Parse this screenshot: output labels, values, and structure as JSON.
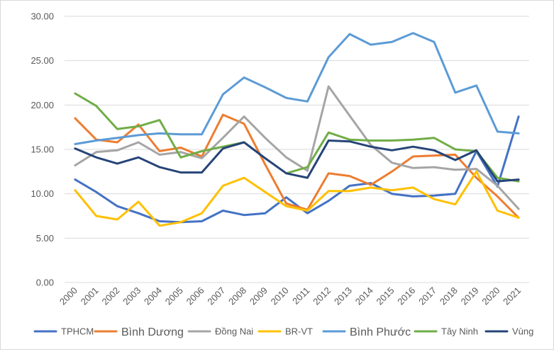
{
  "chart_data": {
    "type": "line",
    "x": [
      "2000",
      "2001",
      "2002",
      "2003",
      "2004",
      "2005",
      "2006",
      "2007",
      "2008",
      "2009",
      "2010",
      "2011",
      "2012",
      "2013",
      "2014",
      "2015",
      "2016",
      "2017",
      "2018",
      "2019",
      "2020",
      "2021"
    ],
    "ylim": [
      0,
      30
    ],
    "yticks": [
      "0.00",
      "5.00",
      "10.00",
      "15.00",
      "20.00",
      "25.00",
      "30.00"
    ],
    "grid": true,
    "legend_position": "bottom",
    "series": [
      {
        "name": "TPHCM",
        "color": "#4472c4",
        "values": [
          11.6,
          10.2,
          8.6,
          7.8,
          6.9,
          6.8,
          6.9,
          8.1,
          7.6,
          7.8,
          9.6,
          7.8,
          9.2,
          10.9,
          11.2,
          10.0,
          9.7,
          9.8,
          10.0,
          14.8,
          10.8,
          18.7
        ]
      },
      {
        "name": "Bình Dương",
        "color": "#ed7d31",
        "values": [
          18.5,
          16.1,
          15.8,
          17.8,
          14.8,
          15.2,
          14.2,
          18.9,
          17.9,
          13.3,
          8.9,
          8.2,
          12.3,
          12.0,
          11.0,
          12.5,
          14.2,
          14.3,
          14.4,
          11.8,
          9.7,
          7.3
        ]
      },
      {
        "name": "Đồng Nai",
        "color": "#a5a5a5",
        "values": [
          13.2,
          14.7,
          14.9,
          15.8,
          14.4,
          14.7,
          14.0,
          16.3,
          18.7,
          16.3,
          14.1,
          12.6,
          22.1,
          18.8,
          15.5,
          13.5,
          12.9,
          13.0,
          12.7,
          12.8,
          10.9,
          8.3
        ]
      },
      {
        "name": "BR-VT",
        "color": "#ffc000",
        "values": [
          10.4,
          7.5,
          7.1,
          9.1,
          6.4,
          6.8,
          7.8,
          10.9,
          11.8,
          10.2,
          8.6,
          8.1,
          10.3,
          10.3,
          10.7,
          10.4,
          10.7,
          9.4,
          8.8,
          12.5,
          8.1,
          7.3
        ]
      },
      {
        "name": "Bình Phước",
        "color": "#5b9bd5",
        "values": [
          15.6,
          16.0,
          16.3,
          16.6,
          16.8,
          16.7,
          16.7,
          21.2,
          23.1,
          22.0,
          20.8,
          20.4,
          25.4,
          28.0,
          26.8,
          27.1,
          28.1,
          27.1,
          21.4,
          22.2,
          17.0,
          16.8
        ]
      },
      {
        "name": "Tây Ninh",
        "color": "#70ad47",
        "values": [
          21.3,
          19.9,
          17.3,
          17.6,
          18.3,
          14.1,
          14.8,
          15.3,
          15.8,
          null,
          12.3,
          13.0,
          16.9,
          16.1,
          16.0,
          16.0,
          16.1,
          16.3,
          15.0,
          14.8,
          11.8,
          11.4
        ]
      },
      {
        "name": "Vùng",
        "color": "#264478",
        "values": [
          15.1,
          14.1,
          13.4,
          14.1,
          13.0,
          12.4,
          12.4,
          15.1,
          15.8,
          14.0,
          12.3,
          11.8,
          16.0,
          15.9,
          15.3,
          14.9,
          15.3,
          14.9,
          13.8,
          14.9,
          11.4,
          11.6
        ]
      }
    ]
  }
}
